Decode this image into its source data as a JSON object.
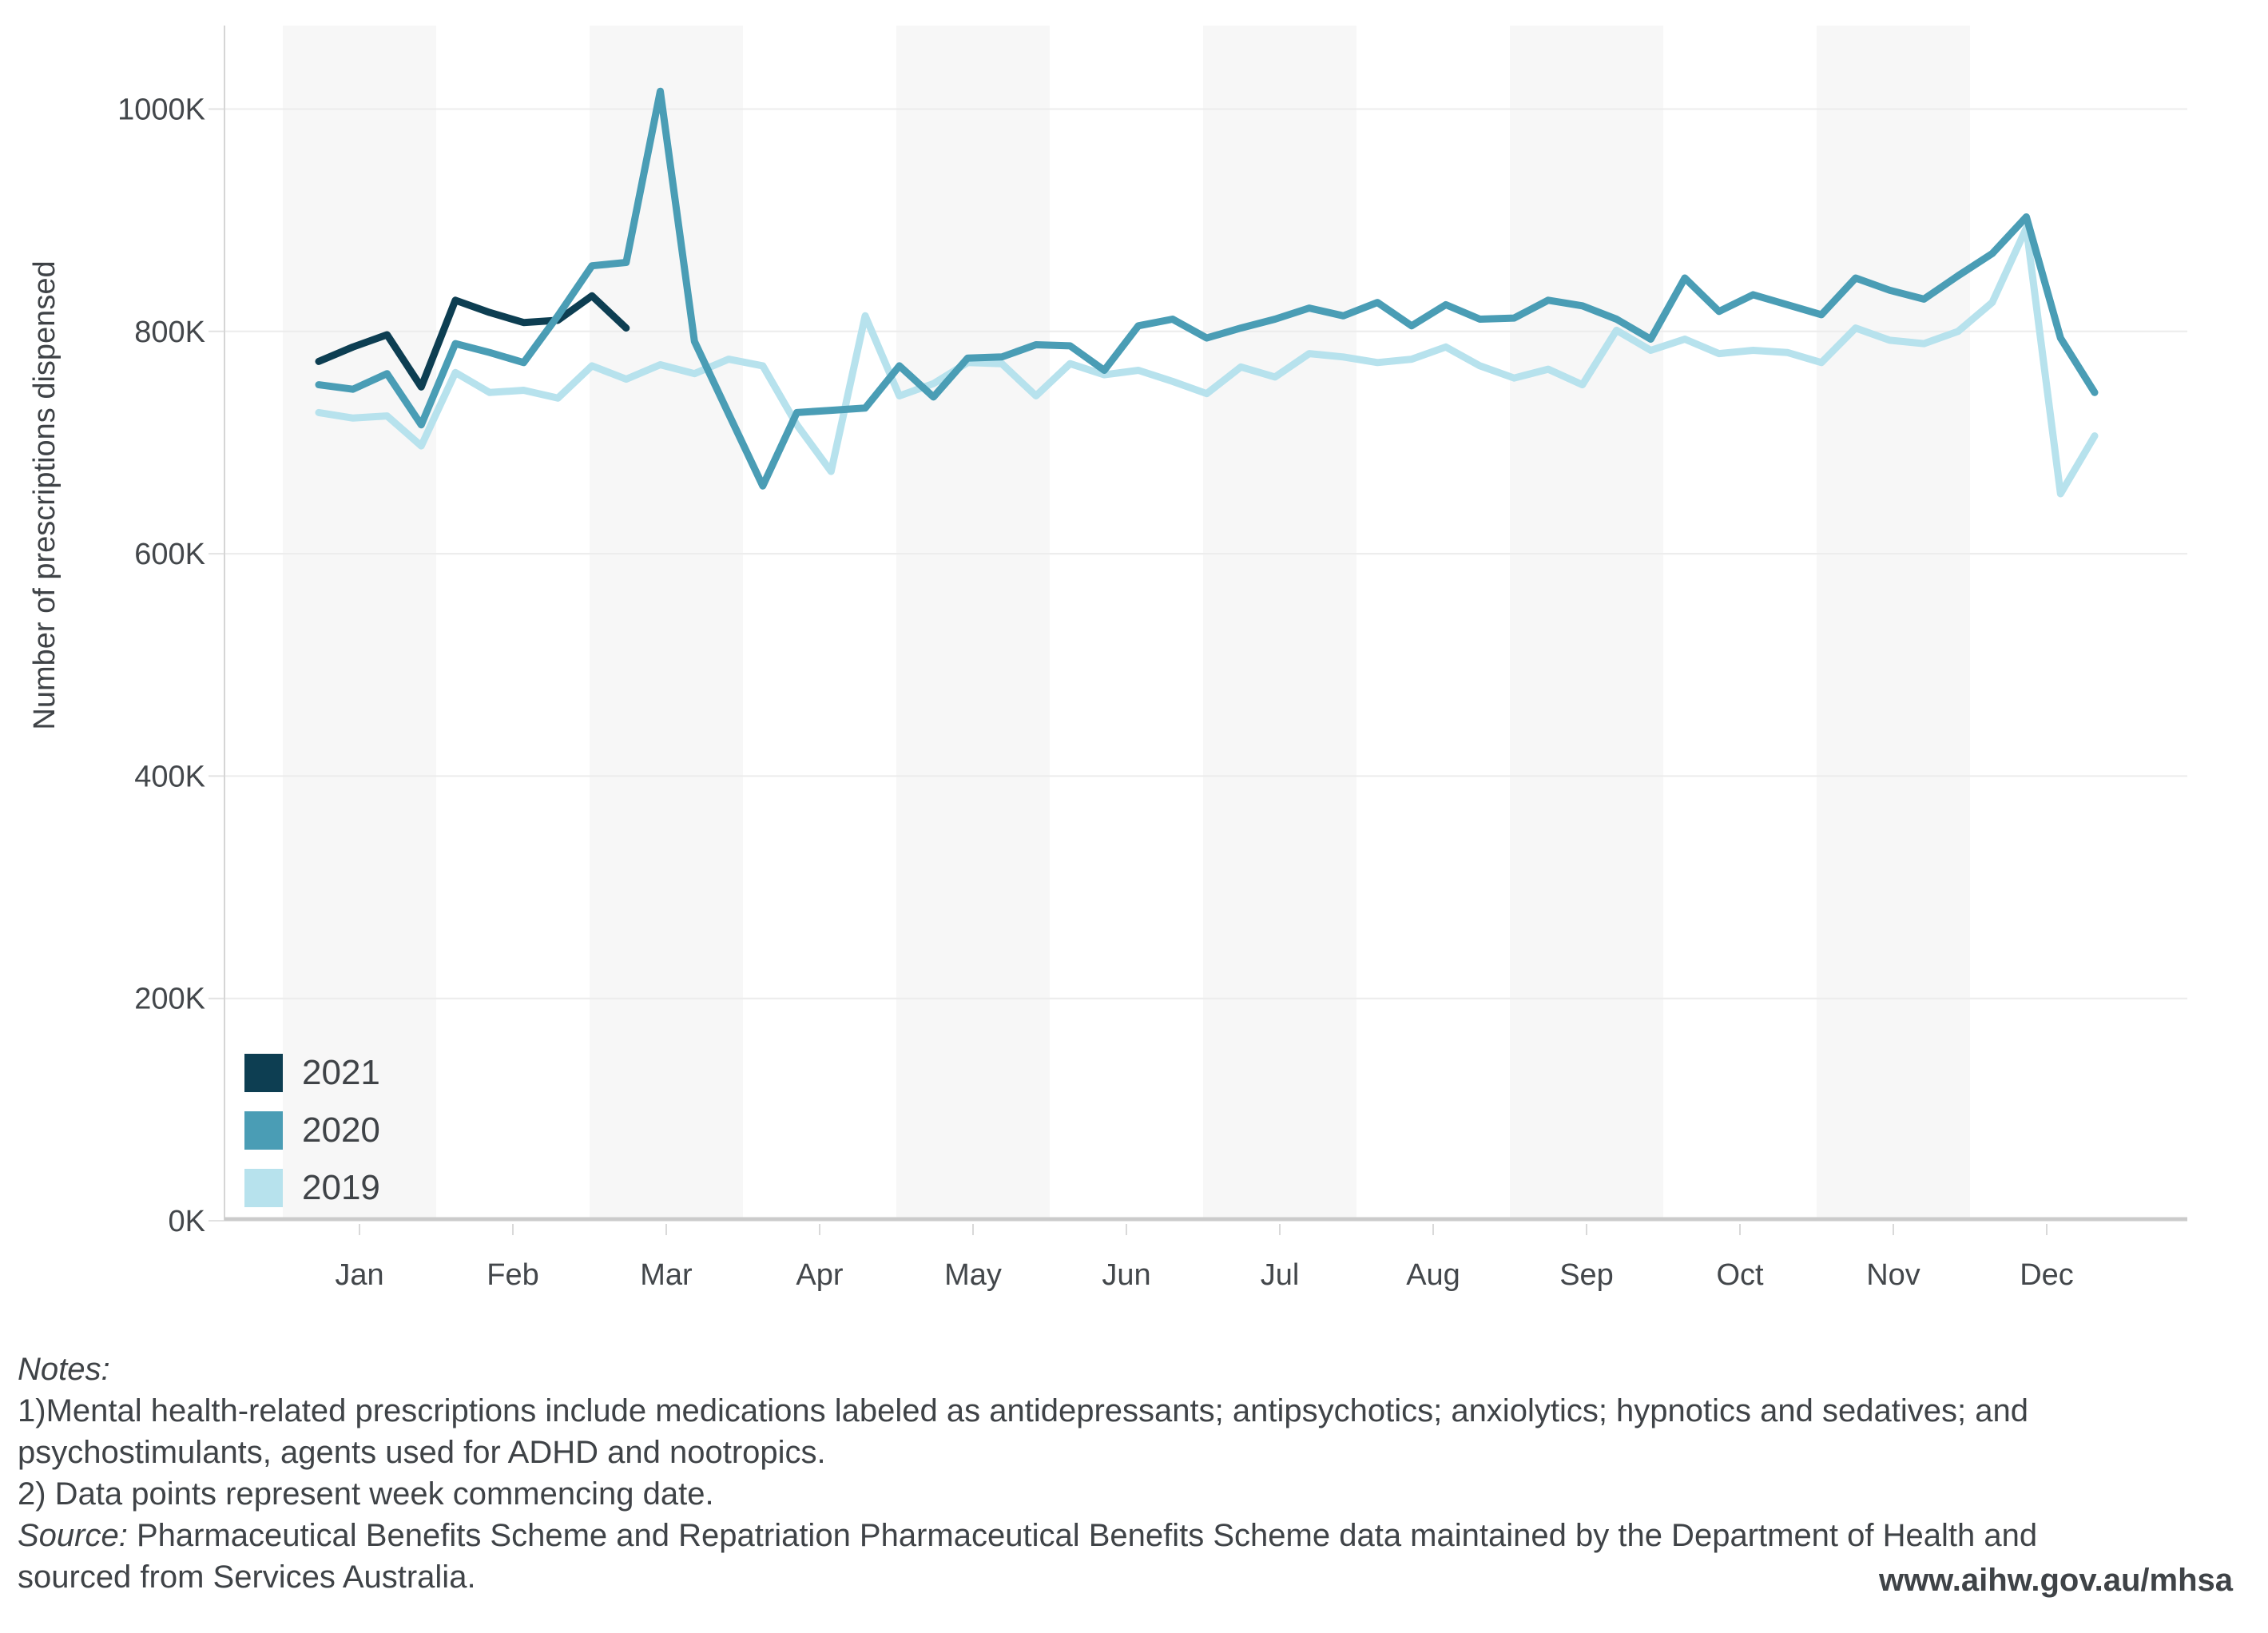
{
  "y_axis_title": "Number of prescriptions dispensed",
  "legend": {
    "items": [
      {
        "label": "2021",
        "color": "#0d3e52"
      },
      {
        "label": "2020",
        "color": "#4a9db5"
      },
      {
        "label": "2019",
        "color": "#b7e2ed"
      }
    ]
  },
  "notes": {
    "notes_label": "Notes:",
    "note1_line1": "1)Mental health-related prescriptions include medications labeled as antidepressants; antipsychotics; anxiolytics; hypnotics and sedatives; and",
    "note1_line2": "psychostimulants, agents used for ADHD and nootropics.",
    "note2": "2) Data points represent week commencing date.",
    "source_label": "Source:",
    "source_line1": "Pharmaceutical Benefits Scheme and Repatriation Pharmaceutical Benefits Scheme data maintained by the Department of Health and",
    "source_line2": "sourced from Services Australia.",
    "url": "www.aihw.gov.au/mhsa"
  },
  "chart_data": {
    "type": "line",
    "title": "",
    "xlabel": "",
    "ylabel": "Number of prescriptions dispensed",
    "x_unit": "week commencing date, weekly points from early January to late December",
    "y_unit": "prescriptions per week (thousands)",
    "ylim": [
      0,
      1075
    ],
    "grid": "horizontal",
    "legend_position": "inside bottom-left",
    "months": [
      "Jan",
      "Feb",
      "Mar",
      "Apr",
      "May",
      "Jun",
      "Jul",
      "Aug",
      "Sep",
      "Oct",
      "Nov",
      "Dec"
    ],
    "shaded_months": [
      "Jan",
      "Mar",
      "May",
      "Jul",
      "Sep",
      "Nov"
    ],
    "ytick_values": [
      0,
      200,
      400,
      600,
      800,
      1000
    ],
    "ytick_labels": [
      "0K",
      "200K",
      "400K",
      "600K",
      "800K",
      "1000K"
    ],
    "series": [
      {
        "name": "2021",
        "color": "#0d3e52",
        "values_unit": "K",
        "values": [
          773,
          786,
          797,
          750,
          828,
          817,
          808,
          810,
          832,
          803
        ]
      },
      {
        "name": "2019",
        "color": "#b7e2ed",
        "values_unit": "K",
        "values": [
          727,
          722,
          724,
          697,
          763,
          745,
          747,
          740,
          769,
          757,
          770,
          762,
          775,
          769,
          716,
          674,
          814,
          742,
          753,
          772,
          771,
          742,
          771,
          761,
          765,
          755,
          744,
          768,
          759,
          780,
          777,
          772,
          775,
          786,
          769,
          758,
          766,
          752,
          801,
          783,
          793,
          780,
          783,
          781,
          772,
          803,
          792,
          789,
          800,
          826,
          893,
          654,
          706
        ]
      },
      {
        "name": "2020",
        "color": "#4a9db5",
        "values_unit": "K",
        "values": [
          752,
          748,
          762,
          716,
          789,
          781,
          772,
          814,
          859,
          862,
          1016,
          791,
          726,
          661,
          727,
          729,
          731,
          769,
          741,
          776,
          777,
          788,
          787,
          765,
          805,
          811,
          794,
          803,
          811,
          821,
          814,
          826,
          805,
          824,
          811,
          812,
          828,
          823,
          811,
          793,
          848,
          818,
          833,
          824,
          815,
          848,
          837,
          829,
          850,
          870,
          903,
          794,
          745
        ]
      }
    ]
  }
}
